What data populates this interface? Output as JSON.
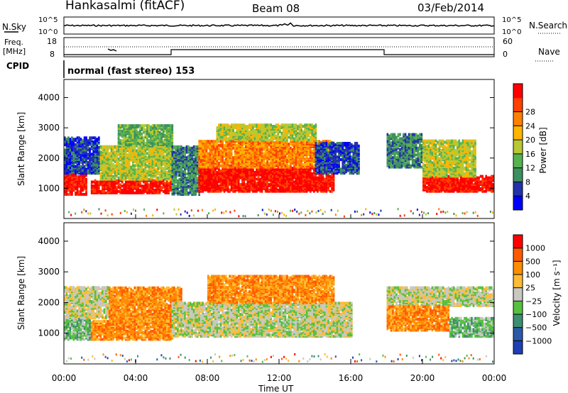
{
  "header": {
    "site": "Hankasalmi (fitACF)",
    "beam": "Beam 08",
    "date": "03/Feb/2014"
  },
  "nsky": {
    "label": "N.Sky",
    "ticks": [
      "10^5",
      "10^0"
    ]
  },
  "nsearch": {
    "label": "N.Search",
    "ticks": [
      "10^5",
      "10^0"
    ]
  },
  "freq": {
    "label_line1": "Freq.",
    "label_line2": "[MHz]",
    "ticks": [
      "18",
      "8"
    ]
  },
  "nave": {
    "label": "Nave",
    "ticks": [
      "60",
      "0"
    ]
  },
  "cpid": {
    "label": "CPID",
    "text": "normal (fast stereo) 153"
  },
  "colors": {
    "power": [
      "#0000ff",
      "#2233aa",
      "#3d8f5e",
      "#56b24f",
      "#b6c933",
      "#ffb400",
      "#ff8000",
      "#ff4000",
      "#ff0000"
    ],
    "velocity": [
      "#ff0000",
      "#ff5a00",
      "#ff8c00",
      "#ffbb33",
      "#c8c8c0",
      "#56c040",
      "#3a8f70",
      "#2a5aa8",
      "#1f3fb5"
    ]
  },
  "chart_data": [
    {
      "type": "heatmap",
      "title": "Power",
      "ylabel": "Slant Range [km]",
      "yticks": [
        "1000",
        "2000",
        "3000",
        "4000"
      ],
      "ylim": [
        0,
        4600
      ],
      "colorbar_label": "Power [dB]",
      "colorbar_ticks": [
        "4",
        "8",
        "12",
        "16",
        "20",
        "24",
        "28"
      ],
      "regions": [
        {
          "t0": 0.0,
          "t1": 1.3,
          "r0": 800,
          "r1": 1500,
          "level": 8
        },
        {
          "t0": 0.0,
          "t1": 2.0,
          "r0": 1500,
          "r1": 2700,
          "level": 1
        },
        {
          "t0": 1.5,
          "t1": 6.0,
          "r0": 850,
          "r1": 1300,
          "level": 8
        },
        {
          "t0": 2.0,
          "t1": 6.0,
          "r0": 1300,
          "r1": 2400,
          "level": 4
        },
        {
          "t0": 3.0,
          "t1": 6.0,
          "r0": 2400,
          "r1": 3100,
          "level": 3
        },
        {
          "t0": 6.0,
          "t1": 7.5,
          "r0": 800,
          "r1": 2400,
          "level": 2
        },
        {
          "t0": 7.5,
          "t1": 15.0,
          "r0": 900,
          "r1": 1700,
          "level": 8
        },
        {
          "t0": 7.5,
          "t1": 15.0,
          "r0": 1700,
          "r1": 2600,
          "level": 6
        },
        {
          "t0": 8.5,
          "t1": 14.0,
          "r0": 2600,
          "r1": 3100,
          "level": 4
        },
        {
          "t0": 14.0,
          "t1": 16.5,
          "r0": 1500,
          "r1": 2500,
          "level": 1
        },
        {
          "t0": 18.0,
          "t1": 20.0,
          "r0": 1700,
          "r1": 2800,
          "level": 2
        },
        {
          "t0": 20.0,
          "t1": 24.0,
          "r0": 900,
          "r1": 1400,
          "level": 8
        },
        {
          "t0": 20.0,
          "t1": 23.0,
          "r0": 1400,
          "r1": 2600,
          "level": 4
        }
      ]
    },
    {
      "type": "heatmap",
      "title": "Velocity",
      "ylabel": "Slant Range [km]",
      "yticks": [
        "1000",
        "2000",
        "3000",
        "4000"
      ],
      "ylim": [
        0,
        4600
      ],
      "colorbar_label": "Velocity [m s⁻¹]",
      "colorbar_ticks": [
        "1000",
        "500",
        "100",
        "25",
        "−25",
        "−100",
        "−500",
        "−1000"
      ],
      "regions": [
        {
          "t0": 0.0,
          "t1": 1.5,
          "r0": 800,
          "r1": 1500,
          "level": 5
        },
        {
          "t0": 0.0,
          "t1": 2.5,
          "r0": 1500,
          "r1": 2500,
          "level": 4
        },
        {
          "t0": 1.5,
          "t1": 6.0,
          "r0": 800,
          "r1": 1400,
          "level": 2
        },
        {
          "t0": 2.5,
          "t1": 6.5,
          "r0": 1400,
          "r1": 2500,
          "level": 2
        },
        {
          "t0": 6.0,
          "t1": 16.0,
          "r0": 900,
          "r1": 2000,
          "level": 4
        },
        {
          "t0": 8.0,
          "t1": 15.0,
          "r0": 2000,
          "r1": 2900,
          "level": 2
        },
        {
          "t0": 18.0,
          "t1": 24.0,
          "r0": 1900,
          "r1": 2500,
          "level": 4
        },
        {
          "t0": 18.0,
          "t1": 21.5,
          "r0": 1100,
          "r1": 1900,
          "level": 2
        },
        {
          "t0": 21.5,
          "t1": 24.0,
          "r0": 900,
          "r1": 1500,
          "level": 5
        }
      ]
    }
  ],
  "xaxis": {
    "label": "Time UT",
    "ticks": [
      "00:00",
      "04:00",
      "08:00",
      "12:00",
      "16:00",
      "20:00",
      "00:00"
    ]
  }
}
